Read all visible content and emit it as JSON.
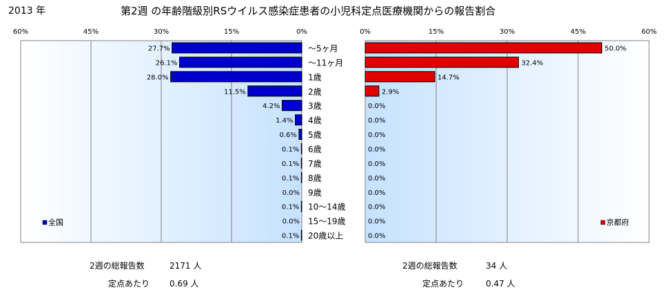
{
  "year": "2013 年",
  "title": "第2週 の年齢階級別RSウイルス感染症患者の小児科定点医療機関からの報告割合",
  "chart_data": [
    {
      "type": "bar",
      "orientation": "horizontal",
      "axis_direction": "reversed",
      "series": [
        {
          "name": "全国",
          "color": "#0000CC",
          "values": [
            27.7,
            26.1,
            28.0,
            11.5,
            4.2,
            1.4,
            0.6,
            0.1,
            0.1,
            0.1,
            0.0,
            0.1,
            0.0,
            0.1
          ]
        }
      ],
      "data_labels": [
        "27.7%",
        "26.1%",
        "28.0%",
        "11.5%",
        "4.2%",
        "1.4%",
        "0.6%",
        "0.1%",
        "0.1%",
        "0.1%",
        "0.0%",
        "0.1%",
        "0.0%",
        "0.1%"
      ],
      "xlim": [
        0,
        60
      ],
      "ticks": [
        "0%",
        "15%",
        "30%",
        "45%",
        "60%"
      ],
      "grid": true,
      "legend": "bottom-left",
      "legend_label": "全国",
      "plot_background": "#CCE6FF"
    },
    {
      "type": "bar",
      "orientation": "horizontal",
      "series": [
        {
          "name": "京都府",
          "color": "#E00000",
          "values": [
            50.0,
            32.4,
            14.7,
            2.9,
            0.0,
            0.0,
            0.0,
            0.0,
            0.0,
            0.0,
            0.0,
            0.0,
            0.0,
            0.0
          ]
        }
      ],
      "data_labels": [
        "50.0%",
        "32.4%",
        "14.7%",
        "2.9%",
        "0.0%",
        "0.0%",
        "0.0%",
        "0.0%",
        "0.0%",
        "0.0%",
        "0.0%",
        "0.0%",
        "0.0%",
        "0.0%"
      ],
      "xlim": [
        0,
        60
      ],
      "ticks": [
        "0%",
        "15%",
        "30%",
        "45%",
        "60%"
      ],
      "grid": true,
      "legend": "bottom-right",
      "legend_label": "京都府",
      "plot_background": "#CCE6FF"
    }
  ],
  "categories": [
    "〜5ヶ月",
    "〜11ヶ月",
    "1歳",
    "2歳",
    "3歳",
    "4歳",
    "5歳",
    "6歳",
    "7歳",
    "8歳",
    "9歳",
    "10〜14歳",
    "15〜19歳",
    "20歳以上"
  ],
  "footer": {
    "left": {
      "total_label": "2週の総報告数",
      "total_value": "2171 人",
      "per_label": "定点あたり",
      "per_value": "0.69 人"
    },
    "right": {
      "total_label": "2週の総報告数",
      "total_value": "34 人",
      "per_label": "定点あたり",
      "per_value": "0.47 人"
    }
  }
}
